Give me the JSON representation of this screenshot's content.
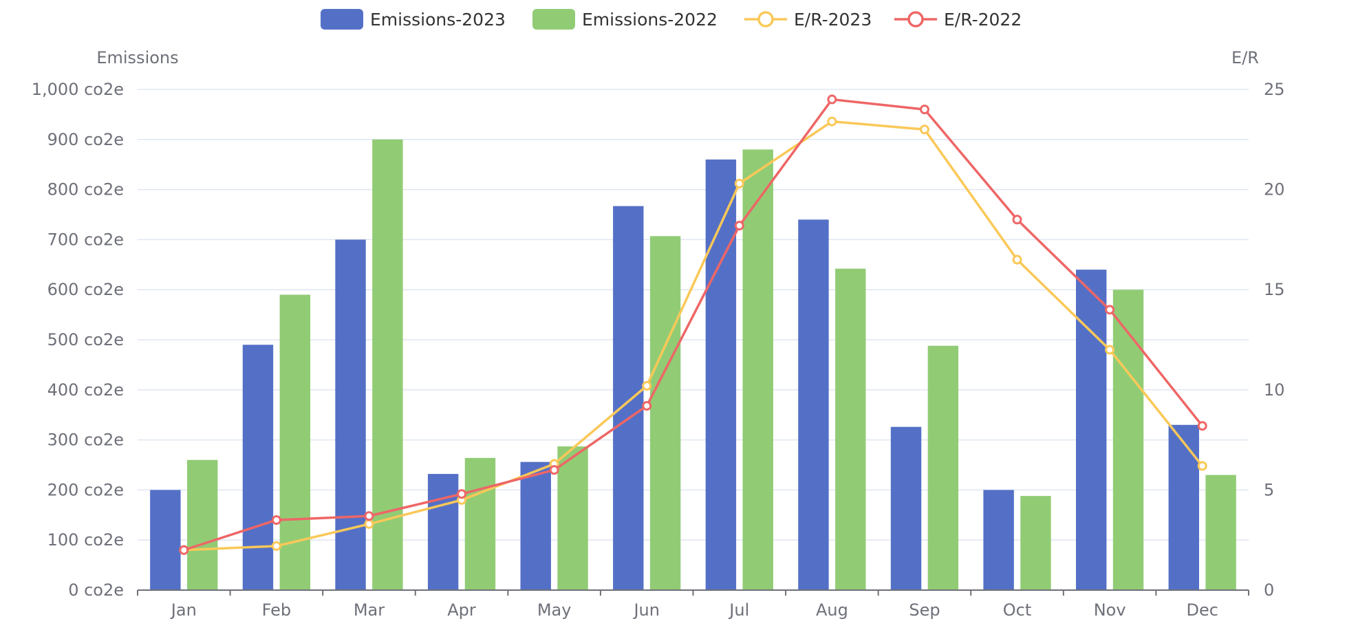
{
  "chart_data": {
    "type": "bar",
    "categories": [
      "Jan",
      "Feb",
      "Mar",
      "Apr",
      "May",
      "Jun",
      "Jul",
      "Aug",
      "Sep",
      "Oct",
      "Nov",
      "Dec"
    ],
    "series": [
      {
        "name": "Emissions-2023",
        "type": "bar",
        "axis": "left",
        "color": "#5470c6",
        "values": [
          200,
          490,
          700,
          232,
          256,
          767,
          860,
          740,
          326,
          200,
          640,
          330
        ]
      },
      {
        "name": "Emissions-2022",
        "type": "bar",
        "axis": "left",
        "color": "#91cc75",
        "values": [
          260,
          590,
          900,
          264,
          287,
          707,
          880,
          642,
          488,
          188,
          600,
          230
        ]
      },
      {
        "name": "E/R-2023",
        "type": "line",
        "axis": "right",
        "color": "#fac858",
        "values": [
          2.0,
          2.2,
          3.3,
          4.5,
          6.3,
          10.2,
          20.3,
          23.4,
          23.0,
          16.5,
          12.0,
          6.2
        ]
      },
      {
        "name": "E/R-2022",
        "type": "line",
        "axis": "right",
        "color": "#ee6666",
        "values": [
          2.0,
          3.5,
          3.7,
          4.8,
          6.0,
          9.2,
          18.2,
          24.5,
          24.0,
          18.5,
          14.0,
          8.2
        ]
      }
    ],
    "y_left": {
      "label": "Emissions",
      "ylim": [
        0,
        1000
      ],
      "ticks": [
        0,
        100,
        200,
        300,
        400,
        500,
        600,
        700,
        800,
        900,
        1000
      ],
      "tick_labels": [
        "0 co2e",
        "100 co2e",
        "200 co2e",
        "300 co2e",
        "400 co2e",
        "500 co2e",
        "600 co2e",
        "700 co2e",
        "800 co2e",
        "900 co2e",
        "1,000 co2e"
      ]
    },
    "y_right": {
      "label": "E/R",
      "ylim": [
        0,
        25
      ],
      "ticks": [
        0,
        5,
        10,
        15,
        20,
        25
      ],
      "tick_labels": [
        "0",
        "5",
        "10",
        "15",
        "20",
        "25"
      ]
    },
    "grid": true,
    "legend_position": "top-center"
  }
}
